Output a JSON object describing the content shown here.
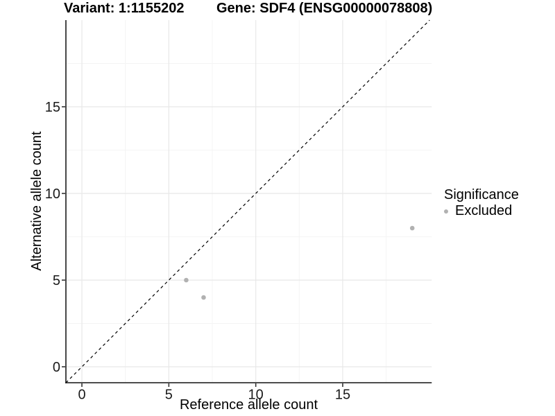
{
  "titles": {
    "variant": "Variant: 1:1155202",
    "gene": "Gene: SDF4 (ENSG00000078808)"
  },
  "legend": {
    "title": "Significance",
    "items": [
      {
        "label": "Excluded",
        "color": "#b1b1b1"
      }
    ]
  },
  "style": {
    "point_color": "#b1b1b1",
    "grid_major_color": "#e8e8e8",
    "grid_minor_color": "#f4f4f4",
    "axis_line_color": "#333333",
    "tick_label_color": "#1a1a1a",
    "reference_line_color": "#000000",
    "background": "#ffffff"
  },
  "chart_data": {
    "type": "scatter",
    "title": "Variant: 1:1155202    Gene: SDF4 (ENSG00000078808)",
    "xlabel": "Reference allele count",
    "ylabel": "Alternative allele count",
    "xlim": [
      -0.92,
      20.12
    ],
    "ylim": [
      -0.92,
      20.0
    ],
    "x_ticks": [
      0,
      5,
      10,
      15
    ],
    "y_ticks": [
      0,
      5,
      10,
      15
    ],
    "x_minor_ticks": [
      2.5,
      7.5,
      12.5,
      17.5
    ],
    "y_minor_ticks": [
      2.5,
      7.5,
      12.5,
      17.5
    ],
    "grid": true,
    "legend_position": "right",
    "series": [
      {
        "name": "Excluded",
        "color": "#b1b1b1",
        "points": [
          [
            6,
            5
          ],
          [
            7,
            4
          ],
          [
            19,
            8
          ]
        ]
      }
    ],
    "reference_line": {
      "slope": 1,
      "intercept": 0,
      "style": "dashed"
    }
  }
}
